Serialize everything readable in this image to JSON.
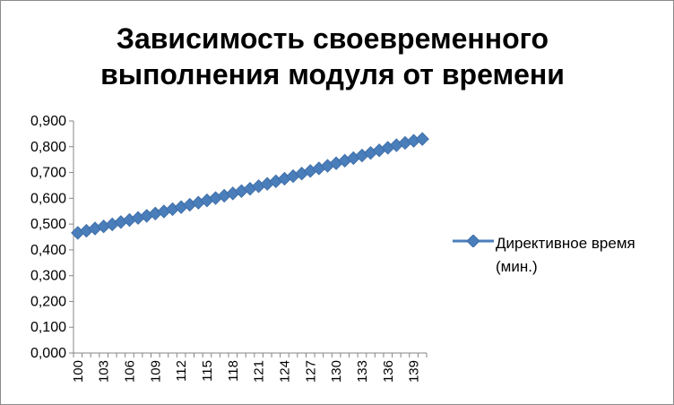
{
  "chart_data": {
    "type": "line",
    "title": "Зависимость своевременного выполнения модуля от времени",
    "xlabel": "",
    "ylabel": "",
    "x": [
      100,
      101,
      102,
      103,
      104,
      105,
      106,
      107,
      108,
      109,
      110,
      111,
      112,
      113,
      114,
      115,
      116,
      117,
      118,
      119,
      120,
      121,
      122,
      123,
      124,
      125,
      126,
      127,
      128,
      129,
      130,
      131,
      132,
      133,
      134,
      135,
      136,
      137,
      138,
      139,
      140
    ],
    "x_tick_labels": [
      "100",
      "103",
      "106",
      "109",
      "112",
      "115",
      "118",
      "121",
      "124",
      "127",
      "130",
      "133",
      "136",
      "139"
    ],
    "y_tick_labels": [
      "0,000",
      "0,100",
      "0,200",
      "0,300",
      "0,400",
      "0,500",
      "0,600",
      "0,700",
      "0,800",
      "0,900"
    ],
    "ylim": [
      0,
      0.9
    ],
    "y_step": 0.1,
    "grid": false,
    "legend_position": "right",
    "series": [
      {
        "name": "Директивное время (мин.)",
        "color": "#4a7ebb",
        "marker": "diamond",
        "values": [
          0.466,
          0.474,
          0.483,
          0.491,
          0.499,
          0.508,
          0.516,
          0.524,
          0.532,
          0.541,
          0.549,
          0.558,
          0.566,
          0.575,
          0.583,
          0.592,
          0.601,
          0.61,
          0.619,
          0.628,
          0.637,
          0.647,
          0.656,
          0.666,
          0.676,
          0.686,
          0.696,
          0.706,
          0.716,
          0.726,
          0.736,
          0.746,
          0.756,
          0.766,
          0.776,
          0.786,
          0.796,
          0.806,
          0.815,
          0.823,
          0.83
        ]
      }
    ]
  }
}
